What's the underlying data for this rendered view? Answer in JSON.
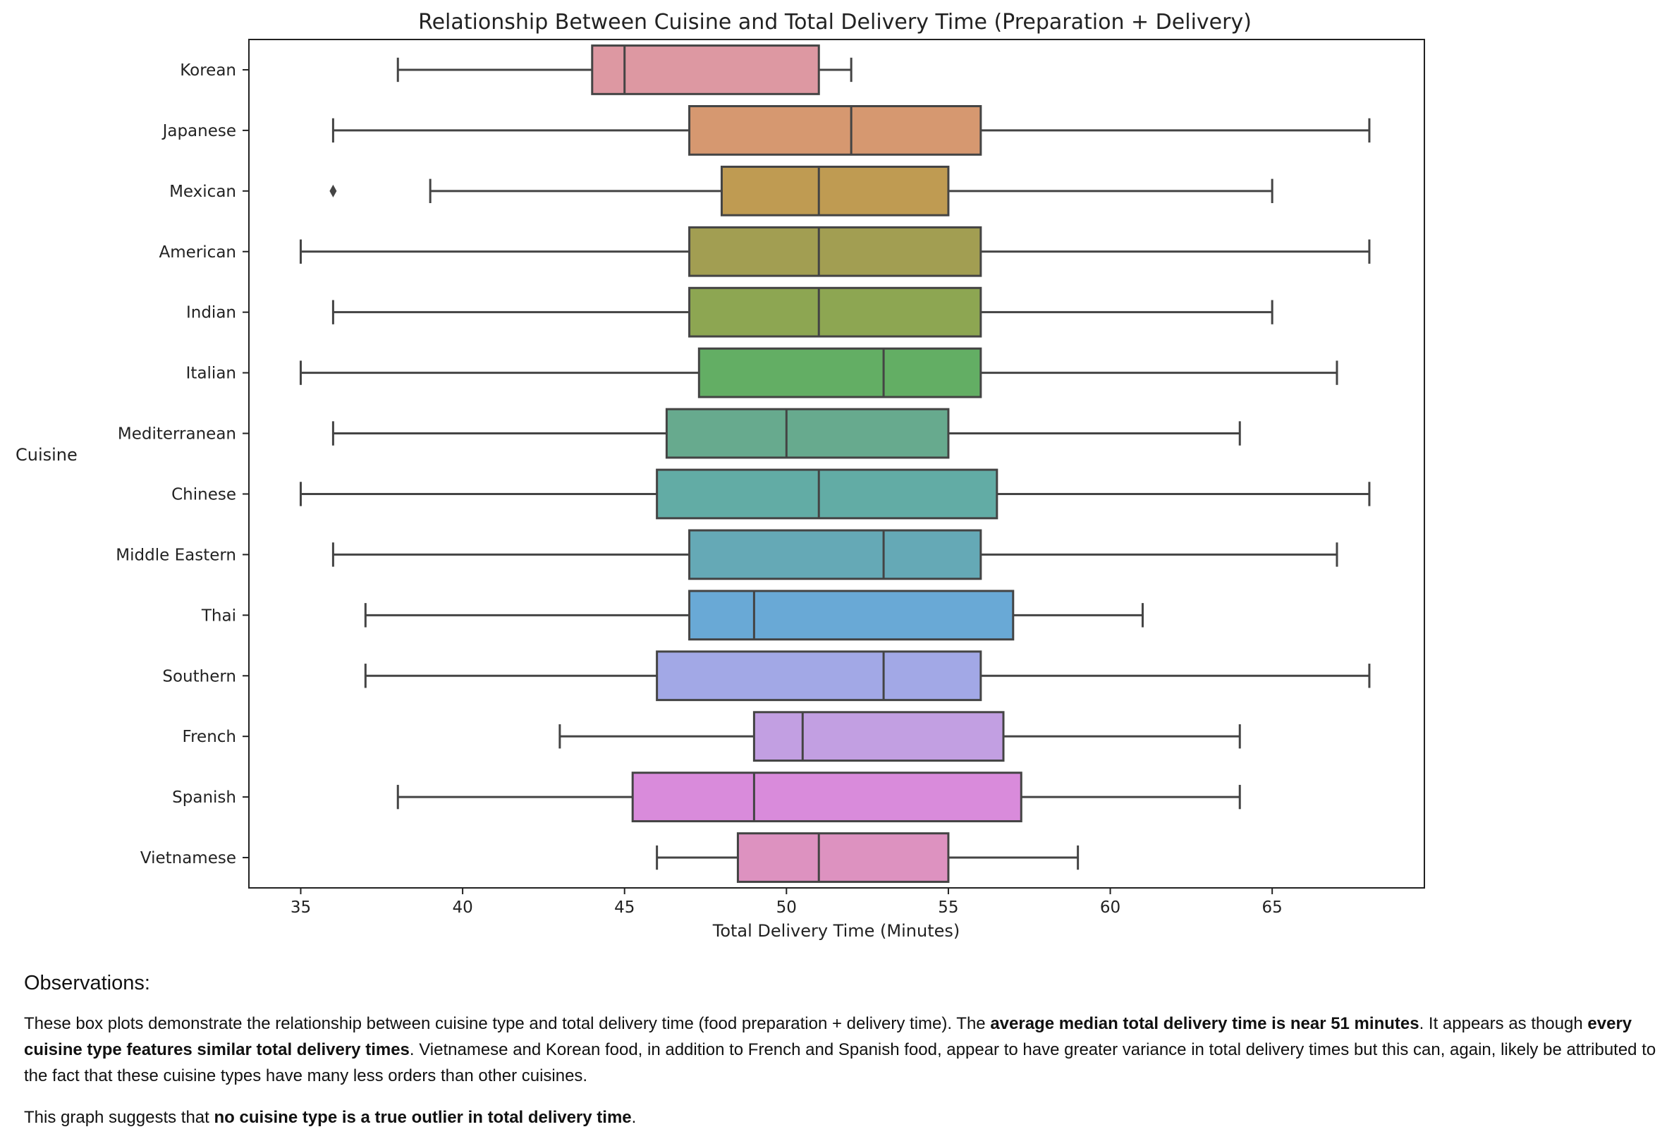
{
  "chart_data": {
    "type": "box",
    "title": "Relationship Between Cuisine and Total Delivery Time (Preparation + Delivery)",
    "xlabel": "Total Delivery Time (Minutes)",
    "ylabel": "Cuisine",
    "xlim": [
      33.4,
      69.7
    ],
    "xticks": [
      35,
      40,
      45,
      50,
      55,
      60,
      65
    ],
    "grid": false,
    "legend": "none",
    "categories": [
      "Korean",
      "Japanese",
      "Mexican",
      "American",
      "Indian",
      "Italian",
      "Mediterranean",
      "Chinese",
      "Middle Eastern",
      "Thai",
      "Southern",
      "French",
      "Spanish",
      "Vietnamese"
    ],
    "boxes": [
      {
        "category": "Korean",
        "whisker_low": 38,
        "q1": 44,
        "median": 45,
        "q3": 51,
        "whisker_high": 52,
        "outliers": [],
        "color": "#dd98a2"
      },
      {
        "category": "Japanese",
        "whisker_low": 36,
        "q1": 47,
        "median": 52,
        "q3": 56,
        "whisker_high": 68,
        "outliers": [],
        "color": "#d69870"
      },
      {
        "category": "Mexican",
        "whisker_low": 39,
        "q1": 48,
        "median": 51,
        "q3": 55,
        "whisker_high": 65,
        "outliers": [
          36
        ],
        "color": "#bf9b52"
      },
      {
        "category": "American",
        "whisker_low": 35,
        "q1": 47,
        "median": 51,
        "q3": 56,
        "whisker_high": 68,
        "outliers": [],
        "color": "#a29e52"
      },
      {
        "category": "Indian",
        "whisker_low": 36,
        "q1": 47,
        "median": 51,
        "q3": 56,
        "whisker_high": 65,
        "outliers": [],
        "color": "#8da652"
      },
      {
        "category": "Italian",
        "whisker_low": 35,
        "q1": 47.3,
        "median": 53,
        "q3": 56,
        "whisker_high": 67,
        "outliers": [],
        "color": "#63ae64"
      },
      {
        "category": "Mediterranean",
        "whisker_low": 36,
        "q1": 46.3,
        "median": 50,
        "q3": 55,
        "whisker_high": 64,
        "outliers": [],
        "color": "#67aa8e"
      },
      {
        "category": "Chinese",
        "whisker_low": 35,
        "q1": 46,
        "median": 51,
        "q3": 56.5,
        "whisker_high": 68,
        "outliers": [],
        "color": "#62aca5"
      },
      {
        "category": "Middle Eastern",
        "whisker_low": 36,
        "q1": 47,
        "median": 53,
        "q3": 56,
        "whisker_high": 67,
        "outliers": [],
        "color": "#65a9b6"
      },
      {
        "category": "Thai",
        "whisker_low": 37,
        "q1": 47,
        "median": 49,
        "q3": 57,
        "whisker_high": 61,
        "outliers": [],
        "color": "#69a9d6"
      },
      {
        "category": "Southern",
        "whisker_low": 37,
        "q1": 46,
        "median": 53,
        "q3": 56,
        "whisker_high": 68,
        "outliers": [],
        "color": "#a2a8e6"
      },
      {
        "category": "French",
        "whisker_low": 43,
        "q1": 49,
        "median": 50.5,
        "q3": 56.7,
        "whisker_high": 64,
        "outliers": [],
        "color": "#c29fe2"
      },
      {
        "category": "Spanish",
        "whisker_low": 38,
        "q1": 45.25,
        "median": 49,
        "q3": 57.25,
        "whisker_high": 64,
        "outliers": [],
        "color": "#d98bdb"
      },
      {
        "category": "Vietnamese",
        "whisker_low": 46,
        "q1": 48.5,
        "median": 51,
        "q3": 55,
        "whisker_high": 59,
        "outliers": [],
        "color": "#dd92c0"
      }
    ]
  },
  "observations": {
    "heading": "Observations:",
    "para1": {
      "t1": "These box plots demonstrate the relationship between cuisine type and total delivery time (food preparation + delivery time). The ",
      "b1": "average median total delivery time is near 51 minutes",
      "t2": ". It appears as though ",
      "b2": "every cuisine type features similar total delivery times",
      "t3": ". Vietnamese and Korean food, in addition to French and Spanish food, appear to have greater variance in total delivery times but this can, again, likely be attributed to the fact that these cuisine types have many less orders than other cuisines."
    },
    "para2": {
      "t1": "This graph suggests that ",
      "b1": "no cuisine type is a true outlier in total delivery time",
      "t2": "."
    }
  }
}
